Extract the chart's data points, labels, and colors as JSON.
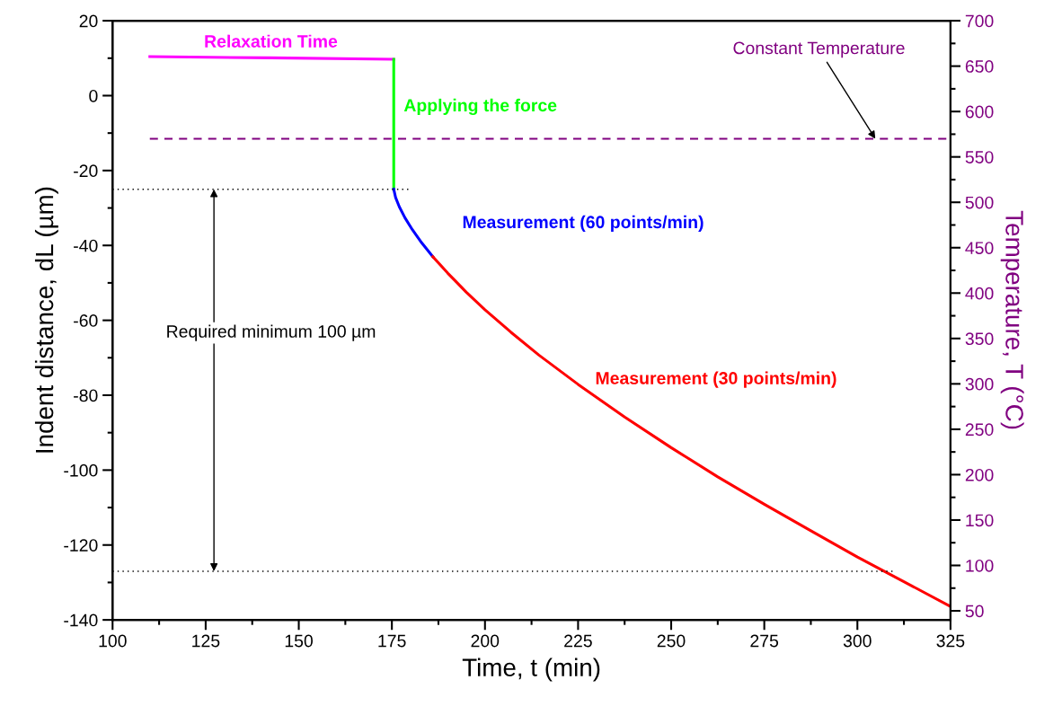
{
  "chart_data": {
    "type": "line",
    "xlabel": "Time, t (min)",
    "ylabel": "Indent distance, dL (µm)",
    "y2label": "Temperature, T (°C)",
    "xlim": [
      100,
      325
    ],
    "xticks": [
      100,
      {
        "value": 112.5,
        "label": null
      },
      125,
      {
        "value": 137.5,
        "label": null
      },
      150,
      {
        "value": 162.5,
        "label": null
      },
      175,
      {
        "value": 187.5,
        "label": null
      },
      200,
      {
        "value": 212.5,
        "label": null
      },
      225,
      {
        "value": 237.5,
        "label": null
      },
      250,
      {
        "value": 262.5,
        "label": null
      },
      275,
      {
        "value": 287.5,
        "label": null
      },
      300,
      {
        "value": 312.5,
        "label": null
      },
      325
    ],
    "ylim": [
      -140,
      20
    ],
    "yticks": [
      -140,
      {
        "value": -130,
        "label": null
      },
      -120,
      {
        "value": -110,
        "label": null
      },
      -100,
      {
        "value": -90,
        "label": null
      },
      -80,
      {
        "value": -70,
        "label": null
      },
      -60,
      {
        "value": -50,
        "label": null
      },
      -40,
      {
        "value": -30,
        "label": null
      },
      -20,
      {
        "value": -10,
        "label": null
      },
      0,
      {
        "value": 10,
        "label": null
      },
      20
    ],
    "y2lim": [
      40,
      700
    ],
    "y2ticks": [
      50,
      {
        "value": 75,
        "label": null
      },
      100,
      {
        "value": 125,
        "label": null
      },
      150,
      {
        "value": 175,
        "label": null
      },
      200,
      {
        "value": 225,
        "label": null
      },
      250,
      {
        "value": 275,
        "label": null
      },
      300,
      {
        "value": 325,
        "label": null
      },
      350,
      {
        "value": 375,
        "label": null
      },
      400,
      {
        "value": 425,
        "label": null
      },
      450,
      {
        "value": 475,
        "label": null
      },
      500,
      {
        "value": 525,
        "label": null
      },
      550,
      {
        "value": 575,
        "label": null
      },
      600,
      {
        "value": 625,
        "label": null
      },
      650,
      {
        "value": 675,
        "label": null
      },
      700
    ],
    "grid": false,
    "legend": false,
    "marker": "none",
    "series": [
      {
        "color": "#ff00ff",
        "x": [
          110,
          142.5,
          175.5
        ],
        "values": [
          10.4,
          10.1,
          9.7
        ]
      },
      {
        "color": "#00ff00",
        "x": [
          175.5,
          175.5
        ],
        "values": [
          9.7,
          -25
        ]
      },
      {
        "color": "#0000ff",
        "x": [
          175.5,
          176,
          177,
          178.5,
          180.5,
          183,
          186
        ],
        "values": [
          -25,
          -27.2,
          -29.7,
          -32.6,
          -35.8,
          -39.3,
          -43
        ]
      },
      {
        "color": "#ff0000",
        "x": [
          186,
          190,
          195,
          200,
          207,
          214.5,
          225,
          237.5,
          250,
          262.5,
          275,
          287.5,
          300,
          312.5,
          325
        ],
        "values": [
          -43,
          -47.4,
          -52.5,
          -57.2,
          -63.2,
          -69.3,
          -77.1,
          -85.8,
          -94,
          -101.8,
          -109.1,
          -116.2,
          -123.2,
          -129.8,
          -136.4
        ]
      },
      {
        "color": "#000000",
        "line_style": "dotted",
        "x": [
          100,
          179.5
        ],
        "values": [
          -25,
          -25
        ]
      },
      {
        "color": "#000000",
        "line_style": "dotted",
        "x": [
          100,
          310
        ],
        "values": [
          -127,
          -127
        ]
      },
      {
        "color": "#800080",
        "line_style": "dashed",
        "axis": "y2",
        "x": [
          110,
          325
        ],
        "values": [
          570,
          570
        ]
      }
    ],
    "annotations": [
      {
        "text": "Relaxation Time",
        "x": 142.5,
        "y": 10.1
      },
      {
        "text": "Applying the force",
        "x": 175.5,
        "y": -3
      },
      {
        "text": "Measurement (60 points/min)",
        "x": 180.5,
        "y": -37.5
      },
      "Measurement (30 points/min)",
      {
        "text": "Constant Temperature",
        "x": 305,
        "y": -11.8
      },
      "Required minimum 100 µm"
    ]
  }
}
